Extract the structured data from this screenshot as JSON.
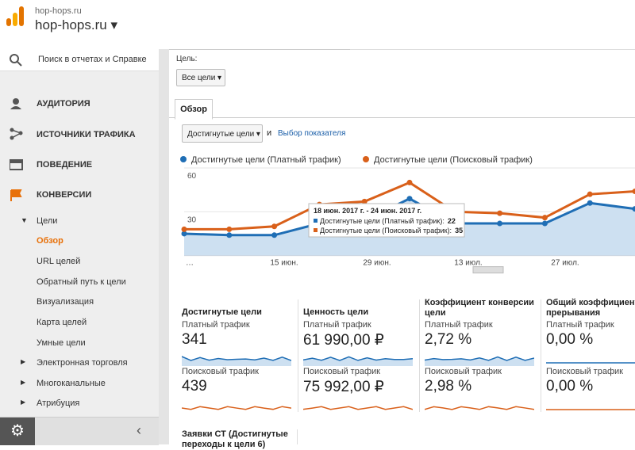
{
  "header": {
    "site_small": "hop-hops.ru",
    "site": "hop-hops.ru"
  },
  "sidebar": {
    "search": "Поиск в отчетах и Справке",
    "items": [
      "АУДИТОРИЯ",
      "ИСТОЧНИКИ ТРАФИКА",
      "ПОВЕДЕНИЕ",
      "КОНВЕРСИИ"
    ],
    "subitems": [
      "Цели",
      "Обзор",
      "URL целей",
      "Обратный путь к цели",
      "Визуализация",
      "Карта целей",
      "Умные цели",
      "Электронная торговля",
      "Многоканальные",
      "Атрибуция"
    ]
  },
  "main": {
    "goal_label": "Цель:",
    "goal_select": "Все цели",
    "tab": "Обзор",
    "metric_select": "Достигнутые цели",
    "and": "и",
    "metric_link": "Выбор показателя"
  },
  "chart": {
    "type": "line",
    "series": [
      {
        "name": "Достигнутые цели (Платный трафик)",
        "color": "#1f6eb5",
        "values": [
          15,
          14,
          14,
          22,
          24,
          39,
          22,
          22,
          22,
          36,
          32
        ]
      },
      {
        "name": "Достигнутые цели (Поисковый трафик)",
        "color": "#d9601a",
        "values": [
          18,
          18,
          20,
          35,
          37,
          50,
          30,
          29,
          26,
          42,
          44
        ]
      }
    ],
    "ylim": [
      0,
      60
    ],
    "yticks": [
      30,
      60
    ],
    "x_labels": [
      "…",
      "15 июн.",
      "29 июн.",
      "13 июл.",
      "27 июл."
    ],
    "tooltip": {
      "date": "18 июн. 2017 г. - 24 июн. 2017 г.",
      "lines": [
        {
          "label": "Достигнутые цели (Платный трафик):",
          "value": "22"
        },
        {
          "label": "Достигнутые цели (Поисковый трафик):",
          "value": "35"
        }
      ]
    }
  },
  "scorecards": [
    {
      "title": "Достигнутые цели",
      "rows": [
        {
          "label": "Платный трафик",
          "value": "341"
        },
        {
          "label": "Поисковый трафик",
          "value": "439"
        }
      ]
    },
    {
      "title": "Ценность цели",
      "rows": [
        {
          "label": "Платный трафик",
          "value": "61 990,00 ₽"
        },
        {
          "label": "Поисковый трафик",
          "value": "75 992,00 ₽"
        }
      ]
    },
    {
      "title": "Коэффициент конверсии цели",
      "rows": [
        {
          "label": "Платный трафик",
          "value": "2,72 %"
        },
        {
          "label": "Поисковый трафик",
          "value": "2,98 %"
        }
      ]
    },
    {
      "title": "Общий коэффициент прерывания",
      "rows": [
        {
          "label": "Платный трафик",
          "value": "0,00 %"
        },
        {
          "label": "Поисковый трафик",
          "value": "0,00 %"
        }
      ]
    }
  ],
  "bottom_card": {
    "title": "Заявки СТ (Достигнутые переходы к цели 6)"
  }
}
